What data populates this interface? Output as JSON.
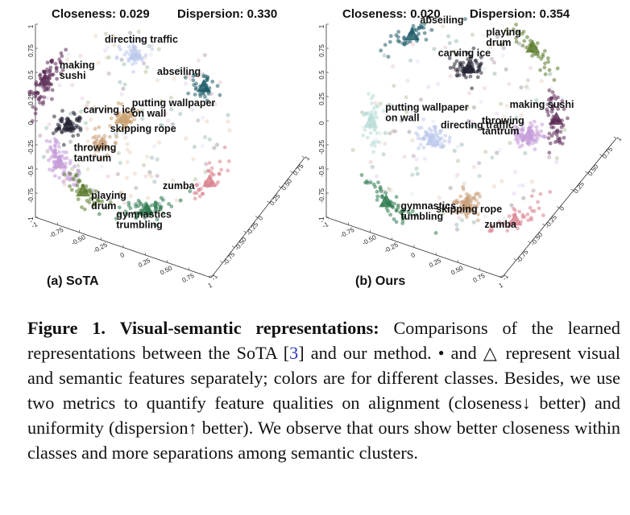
{
  "panels": [
    {
      "id": "sota",
      "title": "(a) SoTA",
      "closeness_label": "Closeness: 0.029",
      "dispersion_label": "Dispersion: 0.330",
      "chart_data": {
        "type": "scatter",
        "title": "",
        "closeness": 0.029,
        "dispersion": 0.33,
        "legend": "none",
        "xlim": [
          -1,
          1
        ],
        "ylim": [
          -1,
          1
        ],
        "zlim": [
          -1,
          1
        ],
        "left_axis_ticks": [
          "1",
          "0.75",
          "0.5",
          "0.25",
          "0",
          "-0.25",
          "-0.5",
          "-0.75",
          "-1"
        ],
        "bottom_axis_ticks": [
          "-1",
          "-0.75",
          "-0.50",
          "-0.25",
          "0",
          "0.25",
          "0.50",
          "0.75",
          "1"
        ],
        "depth_axis_ticks": [
          "-1",
          "-0.75",
          "-0.50",
          "-0.25",
          "0",
          "0.25",
          "0.50",
          "0.75",
          "1"
        ],
        "clusters": [
          {
            "name": "making sushi",
            "label_lines": [
              "making",
              "sushi"
            ],
            "color": "#5b2a55",
            "x": -0.95,
            "y": 0.45,
            "point_count": 80
          },
          {
            "name": "directing traffic",
            "label_lines": [
              "directing traffic"
            ],
            "color": "#bcc9ec",
            "x": 0.0,
            "y": 0.72,
            "point_count": 40
          },
          {
            "name": "abseiling",
            "label_lines": [
              "abseiling"
            ],
            "color": "#1d5b67",
            "x": 0.72,
            "y": 0.38,
            "point_count": 40
          },
          {
            "name": "putting wallpaper on wall",
            "label_lines": [
              "putting wallpaper",
              "on wall"
            ],
            "color": "#caa06e",
            "x": -0.12,
            "y": 0.05,
            "point_count": 50
          },
          {
            "name": "carving ice",
            "label_lines": [
              "carving ice"
            ],
            "color": "#222233",
            "x": -0.7,
            "y": -0.02,
            "point_count": 60
          },
          {
            "name": "skipping rope",
            "label_lines": [
              "skipping rope"
            ],
            "color": "#c99e78",
            "x": -0.35,
            "y": -0.22,
            "point_count": 30
          },
          {
            "name": "throwing tantrum",
            "label_lines": [
              "throwing",
              "tantrum"
            ],
            "color": "#c49ad8",
            "x": -0.8,
            "y": -0.42,
            "point_count": 80
          },
          {
            "name": "playing drum",
            "label_lines": [
              "playing",
              "drum"
            ],
            "color": "#5a7a2a",
            "x": -0.55,
            "y": -0.72,
            "point_count": 40
          },
          {
            "name": "zumba",
            "label_lines": [
              "zumba"
            ],
            "color": "#d9828e",
            "x": 0.78,
            "y": -0.62,
            "point_count": 35
          },
          {
            "name": "gymnastics trumbling",
            "label_lines": [
              "gymnastics",
              "trumbling"
            ],
            "color": "#2c7a4c",
            "x": 0.12,
            "y": -0.92,
            "point_count": 60
          }
        ]
      }
    },
    {
      "id": "ours",
      "title": "(b) Ours",
      "closeness_label": "Closeness: 0.020",
      "dispersion_label": "Dispersion: 0.354",
      "chart_data": {
        "type": "scatter",
        "title": "",
        "closeness": 0.02,
        "dispersion": 0.354,
        "legend": "none",
        "xlim": [
          -1,
          1
        ],
        "ylim": [
          -1,
          1
        ],
        "zlim": [
          -1,
          1
        ],
        "left_axis_ticks": [
          "1",
          "0.75",
          "0.5",
          "0.25",
          "0",
          "-0.25",
          "-0.5",
          "-0.75",
          "-1"
        ],
        "bottom_axis_ticks": [
          "-1",
          "-0.75",
          "-0.50",
          "-0.25",
          "0",
          "0.25",
          "0.50",
          "0.75",
          "1"
        ],
        "depth_axis_ticks": [
          "-1",
          "-0.75",
          "-0.50",
          "-0.25",
          "0",
          "0.25",
          "0.50",
          "0.75",
          "1"
        ],
        "clusters": [
          {
            "name": "abseiling",
            "label_lines": [
              "abseiling"
            ],
            "color": "#1d5b67",
            "x": -0.45,
            "y": 0.9,
            "point_count": 40
          },
          {
            "name": "carving ice",
            "label_lines": [
              "carving ice"
            ],
            "color": "#222233",
            "x": 0.1,
            "y": 0.58,
            "point_count": 70
          },
          {
            "name": "playing drum",
            "label_lines": [
              "playing",
              "drum"
            ],
            "color": "#5a7a2a",
            "x": 0.72,
            "y": 0.78,
            "point_count": 40
          },
          {
            "name": "putting wallpaper on wall",
            "label_lines": [
              "putting wallpaper",
              "on wall"
            ],
            "color": "#b7dcd6",
            "x": -0.85,
            "y": 0.05,
            "point_count": 40
          },
          {
            "name": "making sushi",
            "label_lines": [
              "making sushi"
            ],
            "color": "#5b2a55",
            "x": 0.95,
            "y": 0.08,
            "point_count": 60
          },
          {
            "name": "directing traffic",
            "label_lines": [
              "directing traffic"
            ],
            "color": "#bcc9ec",
            "x": -0.25,
            "y": -0.12,
            "point_count": 60
          },
          {
            "name": "throwing tantrum",
            "label_lines": [
              "throwing",
              "tantrum"
            ],
            "color": "#c49ad8",
            "x": 0.68,
            "y": -0.08,
            "point_count": 70
          },
          {
            "name": "gymnastics tumbling",
            "label_lines": [
              "gymnastics",
              "tumbling"
            ],
            "color": "#2c7a4c",
            "x": -0.7,
            "y": -0.72,
            "point_count": 50
          },
          {
            "name": "zumba",
            "label_lines": [
              "zumba"
            ],
            "color": "#d9828e",
            "x": 0.55,
            "y": -0.9,
            "point_count": 35
          },
          {
            "name": "skipping rope",
            "label_lines": [
              "skipping rope"
            ],
            "color": "#c99e78",
            "x": 0.08,
            "y": -0.75,
            "point_count": 70
          }
        ]
      }
    }
  ],
  "caption": {
    "label": "Figure 1.",
    "bold_title": "Visual-semantic representations:",
    "text_part1": "Comparisons of the learned representations between the SoTA [",
    "citation": "3",
    "text_part2": "] and our method. • and △ represent visual and semantic features separately; colors are for different classes. Besides, we use two metrics to quantify feature qualities on alignment (closeness↓ better) and uniformity (dispersion↑ better). We observe that ours show better closeness within classes and more separations among semantic clusters."
  }
}
